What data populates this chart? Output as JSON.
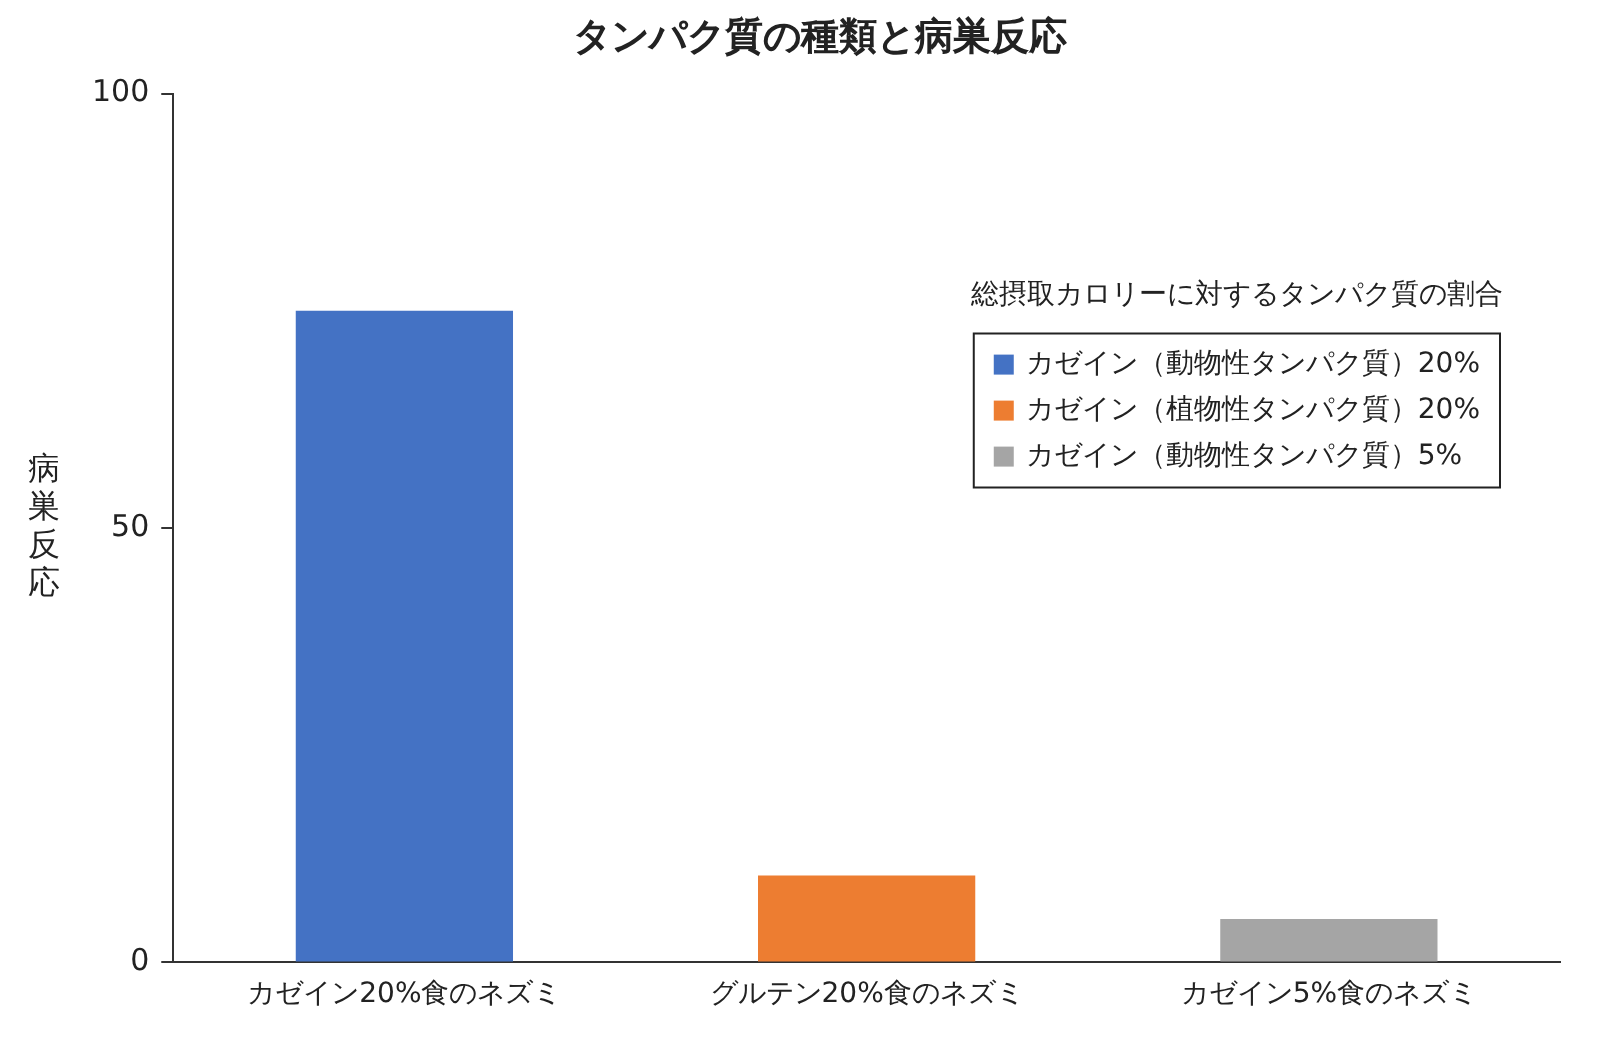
{
  "chart_data": {
    "type": "bar",
    "title": "タンパク質の種類と病巣反応",
    "ylabel": "病巣反応",
    "legend_title": "総摂取カロリーに対するタンパク質の割合",
    "categories": [
      "カゼイン20%食のネズミ",
      "グルテン20%食のネズミ",
      "カゼイン5%食のネズミ"
    ],
    "series": [
      {
        "name": "カゼイン（動物性タンパク質）20%",
        "color": "#4472c4",
        "values": [
          75,
          null,
          null
        ]
      },
      {
        "name": "カゼイン（植物性タンパク質）20%",
        "color": "#ed7d31",
        "values": [
          null,
          10,
          null
        ]
      },
      {
        "name": "カゼイン（動物性タンパク質）5%",
        "color": "#a5a5a5",
        "values": [
          null,
          null,
          5
        ]
      }
    ],
    "ylim": [
      0,
      100
    ],
    "yticks": [
      0,
      50,
      100
    ],
    "grid": false,
    "legend": "top right"
  }
}
